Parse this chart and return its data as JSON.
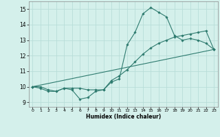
{
  "xlabel": "Humidex (Indice chaleur)",
  "bg_color": "#d4f0eb",
  "line_color": "#2d7a6e",
  "grid_color": "#b8ddd8",
  "xlim": [
    -0.5,
    23.5
  ],
  "ylim": [
    8.7,
    15.5
  ],
  "xticks": [
    0,
    1,
    2,
    3,
    4,
    5,
    6,
    7,
    8,
    9,
    10,
    11,
    12,
    13,
    14,
    15,
    16,
    17,
    18,
    19,
    20,
    21,
    22,
    23
  ],
  "yticks": [
    9,
    10,
    11,
    12,
    13,
    14,
    15
  ],
  "line1_x": [
    0,
    1,
    2,
    3,
    4,
    5,
    6,
    7,
    8,
    9,
    10,
    11,
    12,
    13,
    14,
    15,
    16,
    17,
    18,
    19,
    20,
    21,
    22,
    23
  ],
  "line1_y": [
    10.0,
    10.0,
    9.8,
    9.7,
    9.9,
    9.8,
    9.2,
    9.3,
    9.7,
    9.8,
    10.3,
    10.5,
    12.7,
    13.5,
    14.7,
    15.1,
    14.8,
    14.5,
    13.3,
    13.0,
    13.1,
    13.0,
    12.8,
    12.4
  ],
  "line2_x": [
    0,
    1,
    2,
    3,
    4,
    5,
    6,
    7,
    8,
    9,
    10,
    11,
    12,
    13,
    14,
    15,
    16,
    17,
    18,
    19,
    20,
    21,
    22,
    23
  ],
  "line2_y": [
    10.0,
    9.9,
    9.7,
    9.7,
    9.9,
    9.9,
    9.9,
    9.8,
    9.8,
    9.8,
    10.4,
    10.7,
    11.1,
    11.6,
    12.1,
    12.5,
    12.8,
    13.0,
    13.2,
    13.3,
    13.4,
    13.5,
    13.6,
    12.4
  ],
  "line3_x": [
    0,
    23
  ],
  "line3_y": [
    10.0,
    12.4
  ]
}
